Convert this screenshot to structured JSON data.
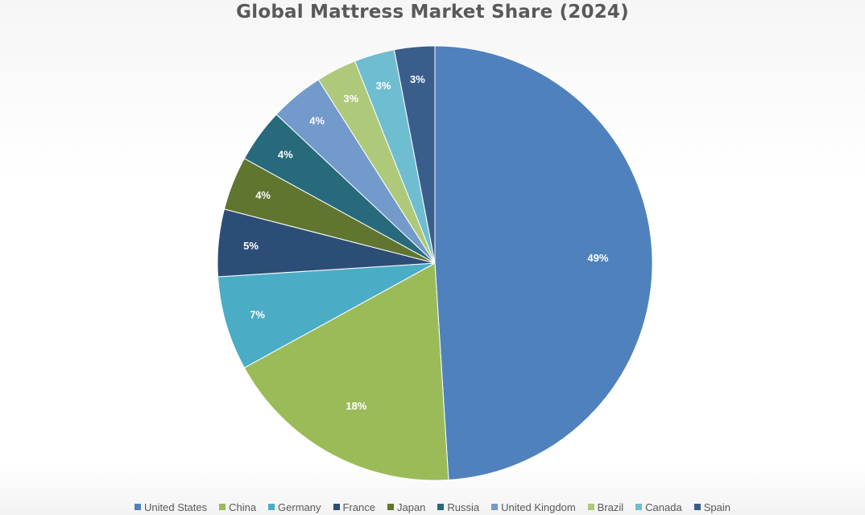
{
  "chart_data": {
    "type": "pie",
    "title": "Global Mattress Market Share (2024)",
    "unit": "%",
    "legend_position": "bottom",
    "categories": [
      "United States",
      "China",
      "Germany",
      "France",
      "Japan",
      "Russia",
      "United Kingdom",
      "Brazil",
      "Canada",
      "Spain"
    ],
    "values": [
      49,
      18,
      7,
      5,
      4,
      4,
      4,
      3,
      3,
      3
    ],
    "labels": [
      "49%",
      "18%",
      "7%",
      "5%",
      "4%",
      "4%",
      "4%",
      "3%",
      "3%",
      "3%"
    ],
    "colors": [
      "#4f81bd",
      "#9bbb59",
      "#4bacc6",
      "#2c4d75",
      "#5f7530",
      "#276a7c",
      "#729aca",
      "#afc97a",
      "#6fbdd1",
      "#3a5e8c"
    ]
  }
}
